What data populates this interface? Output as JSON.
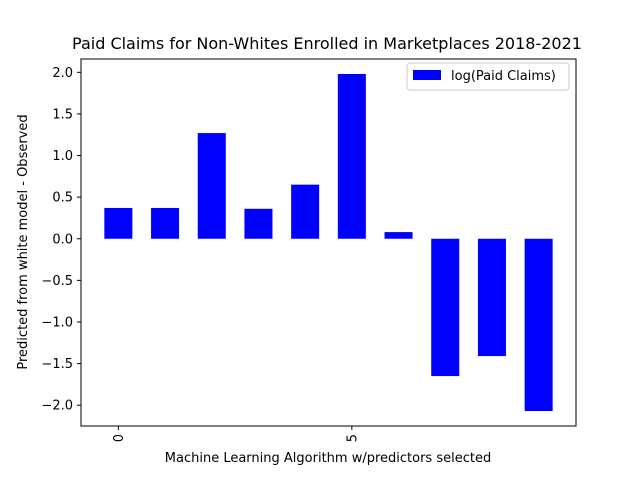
{
  "chart_data": {
    "type": "bar",
    "title": "Paid Claims for Non-Whites Enrolled in Marketplaces 2018-2021",
    "xlabel": "Machine Learning Algorithm w/predictors selected",
    "ylabel": "Predicted from white model - Observed",
    "x": [
      0,
      1,
      2,
      3,
      4,
      5,
      6,
      7,
      8,
      9
    ],
    "series": [
      {
        "name": "log(Paid Claims)",
        "color": "#0000ff",
        "values": [
          0.37,
          0.37,
          1.27,
          0.36,
          0.65,
          1.98,
          0.08,
          -1.65,
          -1.41,
          -2.07
        ]
      }
    ],
    "xlim": [
      -0.8,
      9.8
    ],
    "ylim": [
      -2.25,
      2.16
    ],
    "xticks": [
      0,
      5
    ],
    "xtick_labels": [
      "0",
      "5"
    ],
    "yticks": [
      -2.0,
      -1.5,
      -1.0,
      -0.5,
      0.0,
      0.5,
      1.0,
      1.5,
      2.0
    ],
    "ytick_labels": [
      "−2.0",
      "−1.5",
      "−1.0",
      "−0.5",
      "0.0",
      "0.5",
      "1.0",
      "1.5",
      "2.0"
    ],
    "bar_width": 0.6,
    "grid": false,
    "legend_position": "top-right"
  }
}
